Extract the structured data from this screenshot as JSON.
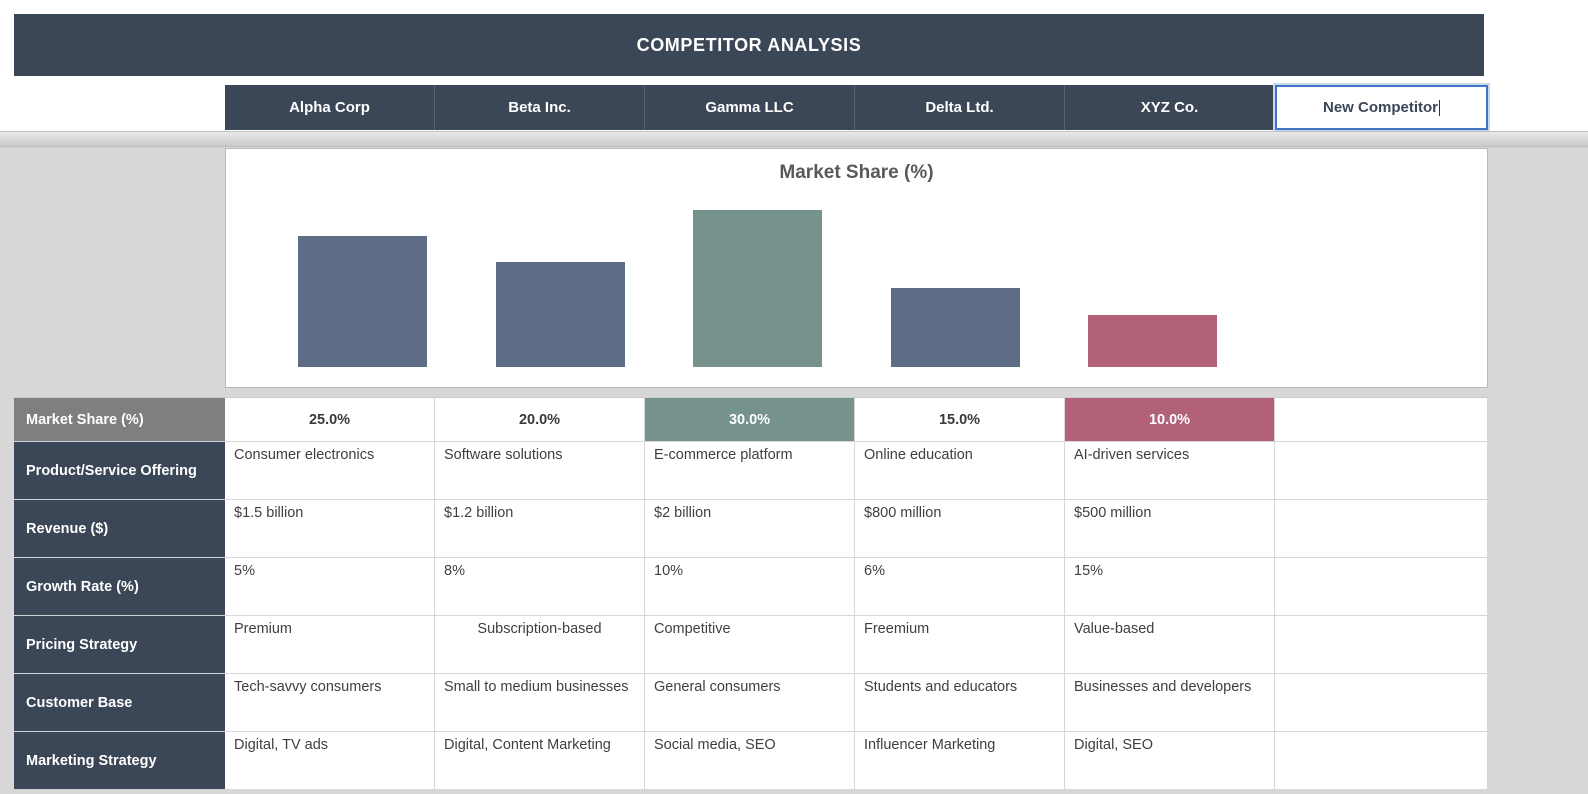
{
  "title": "COMPETITOR ANALYSIS",
  "competitors": [
    "Alpha Corp",
    "Beta Inc.",
    "Gamma LLC",
    "Delta Ltd.",
    "XYZ Co."
  ],
  "new_competitor_cell": {
    "value": "New Competitor"
  },
  "chart_data": {
    "type": "bar",
    "title": "Market Share (%)",
    "categories": [
      "Alpha Corp",
      "Beta Inc.",
      "Gamma LLC",
      "Delta Ltd.",
      "XYZ Co."
    ],
    "values": [
      25,
      20,
      30,
      15,
      10
    ],
    "colors": [
      "#5E6D85",
      "#5E6D85",
      "#75928C",
      "#5E6D85",
      "#B26179"
    ],
    "ylim": [
      0,
      33
    ],
    "grid": false,
    "legend": false,
    "empty_trailing_slots": 1
  },
  "table": {
    "rows": [
      {
        "label": "Market Share (%)",
        "label_bg": "#7F7F7F",
        "cells": [
          "25.0%",
          "20.0%",
          {
            "text": "30.0%",
            "bg": "#75928C",
            "color": "#FFFFFF"
          },
          "15.0%",
          {
            "text": "10.0%",
            "bg": "#B26179",
            "color": "#FFFFFF"
          },
          ""
        ]
      },
      {
        "label": "Product/Service Offering",
        "cells": [
          "Consumer electronics",
          "Software solutions",
          "E-commerce platform",
          "Online education",
          "AI-driven services",
          ""
        ]
      },
      {
        "label": "Revenue ($)",
        "cells": [
          "$1.5 billion",
          "$1.2 billion",
          "$2 billion",
          "$800 million",
          "$500 million",
          ""
        ]
      },
      {
        "label": "Growth Rate (%)",
        "cells": [
          "5%",
          "8%",
          "10%",
          "6%",
          "15%",
          ""
        ]
      },
      {
        "label": "Pricing Strategy",
        "cells": [
          "Premium",
          {
            "text": "Subscription-based",
            "align": "center"
          },
          "Competitive",
          "Freemium",
          "Value-based",
          ""
        ]
      },
      {
        "label": "Customer Base",
        "cells": [
          "Tech-savvy consumers",
          "Small to medium businesses",
          "General consumers",
          "Students and educators",
          "Businesses and developers",
          ""
        ]
      },
      {
        "label": "Marketing Strategy",
        "cells": [
          "Digital, TV ads",
          "Digital, Content Marketing",
          "Social media, SEO",
          "Influencer Marketing",
          "Digital, SEO",
          ""
        ]
      }
    ]
  }
}
